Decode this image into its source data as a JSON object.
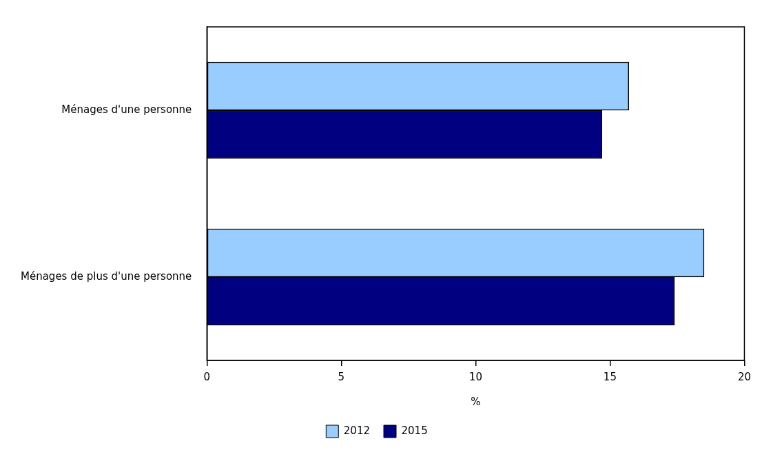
{
  "chart_data": {
    "type": "bar",
    "orientation": "horizontal",
    "categories": [
      "Ménages d'une personne",
      "Ménages de plus d'une personne"
    ],
    "series": [
      {
        "name": "2012",
        "color": "#99ccff",
        "values": [
          15.7,
          18.5
        ]
      },
      {
        "name": "2015",
        "color": "#000080",
        "values": [
          14.7,
          17.4
        ]
      }
    ],
    "xlabel": "%",
    "xlim": [
      0,
      20
    ],
    "xticks": [
      0,
      5,
      10,
      15,
      20
    ],
    "grid": false,
    "legend": "bottom"
  }
}
